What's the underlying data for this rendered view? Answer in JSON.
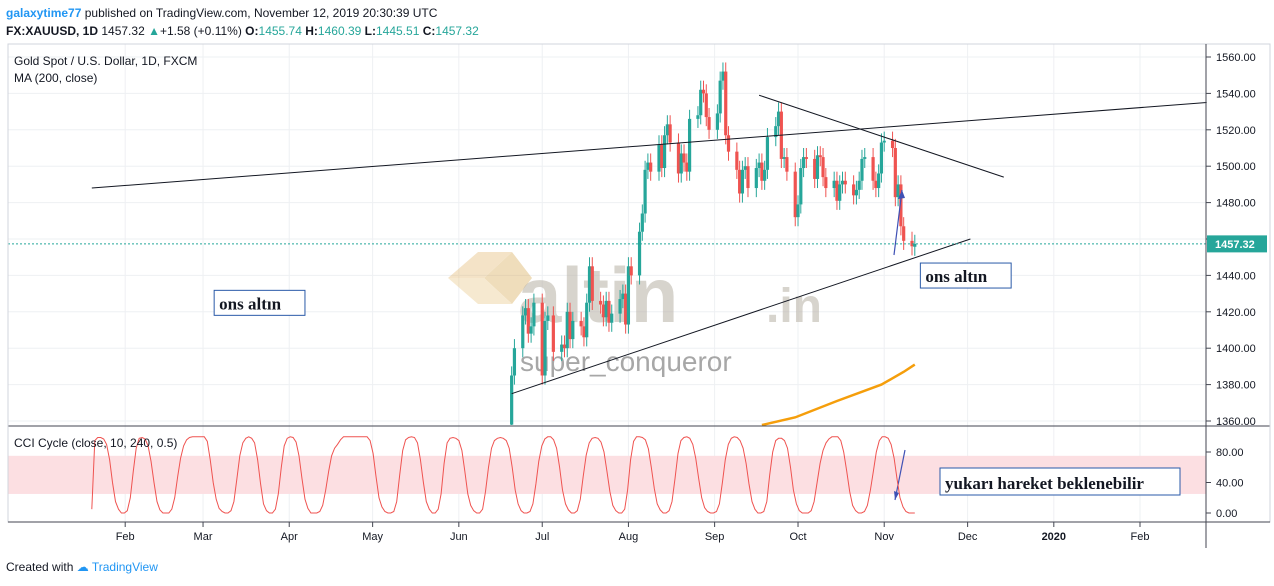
{
  "header": {
    "author": "galaxytime77",
    "published": "published on TradingView.com, November 12, 2019 20:30:39 UTC",
    "symbol": "FX:XAUUSD, 1D",
    "last": "1457.32",
    "change": "+1.58 (+0.11%)",
    "open_label": "O:",
    "open": "1455.74",
    "high_label": "H:",
    "high": "1460.39",
    "low_label": "L:",
    "low": "1445.51",
    "close_label": "C:",
    "close": "1457.32"
  },
  "footer": {
    "created_with": "Created with",
    "brand": "TradingView"
  },
  "colors": {
    "up": "#26a69a",
    "down": "#ef5350",
    "ma": "#f59e0b",
    "cci": "#ef5350",
    "band": "#fcdfe2",
    "trend": "#131722",
    "arrow": "#3f51b5"
  },
  "watermark": {
    "logo": "altin",
    "logo_suffix": ".in",
    "user": "super_conqueror"
  },
  "chart_data": [
    {
      "type": "candlestick",
      "title": "Gold Spot / U.S. Dollar, 1D, FXCM",
      "indicator": "MA (200, close)",
      "x_ticks": [
        "Feb",
        "Mar",
        "Apr",
        "May",
        "Jun",
        "Jul",
        "Aug",
        "Sep",
        "Oct",
        "Nov",
        "Dec",
        "2020",
        "Feb"
      ],
      "y_ticks": [
        1360,
        1380,
        1400,
        1420,
        1440,
        1460,
        1480,
        1500,
        1520,
        1540,
        1560
      ],
      "ylim": [
        1355,
        1566
      ],
      "last_price": "1457.32",
      "candles": [
        {
          "x": "2019-06-20",
          "o": 1358,
          "c": 1385
        },
        {
          "x": "2019-06-21",
          "o": 1385,
          "c": 1400
        },
        {
          "x": "2019-06-24",
          "o": 1400,
          "c": 1418
        },
        {
          "x": "2019-06-25",
          "o": 1418,
          "c": 1422
        },
        {
          "x": "2019-06-26",
          "o": 1422,
          "c": 1408
        },
        {
          "x": "2019-06-27",
          "o": 1408,
          "c": 1412
        },
        {
          "x": "2019-06-28",
          "o": 1412,
          "c": 1425
        },
        {
          "x": "2019-07-01",
          "o": 1425,
          "c": 1385
        },
        {
          "x": "2019-07-02",
          "o": 1385,
          "c": 1415
        },
        {
          "x": "2019-07-03",
          "o": 1415,
          "c": 1418
        },
        {
          "x": "2019-07-05",
          "o": 1418,
          "c": 1398
        },
        {
          "x": "2019-07-08",
          "o": 1398,
          "c": 1402
        },
        {
          "x": "2019-07-09",
          "o": 1402,
          "c": 1400
        },
        {
          "x": "2019-07-10",
          "o": 1400,
          "c": 1420
        },
        {
          "x": "2019-07-11",
          "o": 1420,
          "c": 1405
        },
        {
          "x": "2019-07-12",
          "o": 1405,
          "c": 1415
        },
        {
          "x": "2019-07-15",
          "o": 1415,
          "c": 1412
        },
        {
          "x": "2019-07-16",
          "o": 1412,
          "c": 1406
        },
        {
          "x": "2019-07-17",
          "o": 1406,
          "c": 1425
        },
        {
          "x": "2019-07-18",
          "o": 1425,
          "c": 1445
        },
        {
          "x": "2019-07-19",
          "o": 1445,
          "c": 1426
        },
        {
          "x": "2019-07-22",
          "o": 1426,
          "c": 1424
        },
        {
          "x": "2019-07-23",
          "o": 1424,
          "c": 1417
        },
        {
          "x": "2019-07-24",
          "o": 1417,
          "c": 1426
        },
        {
          "x": "2019-07-25",
          "o": 1426,
          "c": 1414
        },
        {
          "x": "2019-07-26",
          "o": 1414,
          "c": 1419
        },
        {
          "x": "2019-07-29",
          "o": 1419,
          "c": 1427
        },
        {
          "x": "2019-07-30",
          "o": 1427,
          "c": 1430
        },
        {
          "x": "2019-07-31",
          "o": 1430,
          "c": 1413
        },
        {
          "x": "2019-08-01",
          "o": 1413,
          "c": 1445
        },
        {
          "x": "2019-08-02",
          "o": 1445,
          "c": 1440
        },
        {
          "x": "2019-08-05",
          "o": 1440,
          "c": 1464
        },
        {
          "x": "2019-08-06",
          "o": 1464,
          "c": 1474
        },
        {
          "x": "2019-08-07",
          "o": 1474,
          "c": 1498
        },
        {
          "x": "2019-08-08",
          "o": 1498,
          "c": 1502
        },
        {
          "x": "2019-08-09",
          "o": 1502,
          "c": 1497
        },
        {
          "x": "2019-08-12",
          "o": 1497,
          "c": 1512
        },
        {
          "x": "2019-08-13",
          "o": 1512,
          "c": 1499
        },
        {
          "x": "2019-08-14",
          "o": 1499,
          "c": 1517
        },
        {
          "x": "2019-08-15",
          "o": 1517,
          "c": 1523
        },
        {
          "x": "2019-08-16",
          "o": 1523,
          "c": 1513
        },
        {
          "x": "2019-08-19",
          "o": 1513,
          "c": 1496
        },
        {
          "x": "2019-08-20",
          "o": 1496,
          "c": 1507
        },
        {
          "x": "2019-08-21",
          "o": 1507,
          "c": 1502
        },
        {
          "x": "2019-08-22",
          "o": 1502,
          "c": 1497
        },
        {
          "x": "2019-08-23",
          "o": 1497,
          "c": 1526
        },
        {
          "x": "2019-08-26",
          "o": 1526,
          "c": 1528
        },
        {
          "x": "2019-08-27",
          "o": 1528,
          "c": 1542
        },
        {
          "x": "2019-08-28",
          "o": 1542,
          "c": 1540
        },
        {
          "x": "2019-08-29",
          "o": 1540,
          "c": 1527
        },
        {
          "x": "2019-08-30",
          "o": 1527,
          "c": 1520
        },
        {
          "x": "2019-09-02",
          "o": 1520,
          "c": 1529
        },
        {
          "x": "2019-09-03",
          "o": 1529,
          "c": 1547
        },
        {
          "x": "2019-09-04",
          "o": 1547,
          "c": 1552
        },
        {
          "x": "2019-09-05",
          "o": 1552,
          "c": 1517
        },
        {
          "x": "2019-09-06",
          "o": 1517,
          "c": 1508
        },
        {
          "x": "2019-09-09",
          "o": 1508,
          "c": 1498
        },
        {
          "x": "2019-09-10",
          "o": 1498,
          "c": 1485
        },
        {
          "x": "2019-09-11",
          "o": 1485,
          "c": 1498
        },
        {
          "x": "2019-09-12",
          "o": 1498,
          "c": 1500
        },
        {
          "x": "2019-09-13",
          "o": 1500,
          "c": 1488
        },
        {
          "x": "2019-09-16",
          "o": 1488,
          "c": 1499
        },
        {
          "x": "2019-09-17",
          "o": 1499,
          "c": 1502
        },
        {
          "x": "2019-09-18",
          "o": 1502,
          "c": 1492
        },
        {
          "x": "2019-09-19",
          "o": 1492,
          "c": 1498
        },
        {
          "x": "2019-09-20",
          "o": 1498,
          "c": 1516
        },
        {
          "x": "2019-09-23",
          "o": 1516,
          "c": 1522
        },
        {
          "x": "2019-09-24",
          "o": 1522,
          "c": 1530
        },
        {
          "x": "2019-09-25",
          "o": 1530,
          "c": 1504
        },
        {
          "x": "2019-09-26",
          "o": 1504,
          "c": 1505
        },
        {
          "x": "2019-09-27",
          "o": 1505,
          "c": 1497
        },
        {
          "x": "2019-09-30",
          "o": 1497,
          "c": 1472
        },
        {
          "x": "2019-10-01",
          "o": 1472,
          "c": 1479
        },
        {
          "x": "2019-10-02",
          "o": 1479,
          "c": 1499
        },
        {
          "x": "2019-10-03",
          "o": 1499,
          "c": 1505
        },
        {
          "x": "2019-10-04",
          "o": 1505,
          "c": 1504
        },
        {
          "x": "2019-10-07",
          "o": 1504,
          "c": 1493
        },
        {
          "x": "2019-10-08",
          "o": 1493,
          "c": 1506
        },
        {
          "x": "2019-10-09",
          "o": 1506,
          "c": 1505
        },
        {
          "x": "2019-10-10",
          "o": 1505,
          "c": 1494
        },
        {
          "x": "2019-10-11",
          "o": 1494,
          "c": 1488
        },
        {
          "x": "2019-10-14",
          "o": 1488,
          "c": 1492
        },
        {
          "x": "2019-10-15",
          "o": 1492,
          "c": 1481
        },
        {
          "x": "2019-10-16",
          "o": 1481,
          "c": 1490
        },
        {
          "x": "2019-10-17",
          "o": 1490,
          "c": 1492
        },
        {
          "x": "2019-10-18",
          "o": 1492,
          "c": 1490
        },
        {
          "x": "2019-10-21",
          "o": 1490,
          "c": 1484
        },
        {
          "x": "2019-10-22",
          "o": 1484,
          "c": 1487
        },
        {
          "x": "2019-10-23",
          "o": 1487,
          "c": 1492
        },
        {
          "x": "2019-10-24",
          "o": 1492,
          "c": 1504
        },
        {
          "x": "2019-10-25",
          "o": 1504,
          "c": 1505
        },
        {
          "x": "2019-10-28",
          "o": 1505,
          "c": 1492
        },
        {
          "x": "2019-10-29",
          "o": 1492,
          "c": 1488
        },
        {
          "x": "2019-10-30",
          "o": 1488,
          "c": 1496
        },
        {
          "x": "2019-10-31",
          "o": 1496,
          "c": 1513
        },
        {
          "x": "2019-11-01",
          "o": 1513,
          "c": 1514
        },
        {
          "x": "2019-11-04",
          "o": 1514,
          "c": 1510
        },
        {
          "x": "2019-11-05",
          "o": 1510,
          "c": 1483
        },
        {
          "x": "2019-11-06",
          "o": 1483,
          "c": 1490
        },
        {
          "x": "2019-11-07",
          "o": 1490,
          "c": 1467
        },
        {
          "x": "2019-11-08",
          "o": 1467,
          "c": 1459
        },
        {
          "x": "2019-11-11",
          "o": 1459,
          "c": 1456
        },
        {
          "x": "2019-11-12",
          "o": 1455.74,
          "c": 1457.32
        }
      ],
      "ma200": [
        {
          "x": "2019-09-18",
          "y": 1355
        },
        {
          "x": "2019-09-30",
          "y": 1362
        },
        {
          "x": "2019-10-15",
          "y": 1371
        },
        {
          "x": "2019-10-31",
          "y": 1380
        },
        {
          "x": "2019-11-08",
          "y": 1387
        },
        {
          "x": "2019-11-12",
          "y": 1391
        }
      ],
      "trendlines": [
        {
          "from": {
            "x": "2019-01-20",
            "y": 1488
          },
          "to": {
            "x": "2020-02-25",
            "y": 1535
          }
        },
        {
          "from": {
            "x": "2019-09-17",
            "y": 1539
          },
          "to": {
            "x": "2019-12-14",
            "y": 1494
          }
        },
        {
          "from": {
            "x": "2019-06-20",
            "y": 1375
          },
          "to": {
            "x": "2019-12-02",
            "y": 1460
          }
        }
      ],
      "annotations": [
        {
          "text": "ons altın",
          "x": "2019-03-05",
          "y": 1423
        },
        {
          "text": "ons altın",
          "x": "2019-11-14",
          "y": 1438
        }
      ]
    },
    {
      "type": "line",
      "title": "CCI Cycle (close, 10, 240, 0.5)",
      "y_ticks": [
        0,
        40,
        80
      ],
      "ylim": [
        -6,
        112
      ],
      "band": [
        25,
        75
      ],
      "values": [
        5,
        95,
        99,
        99,
        97,
        90,
        70,
        40,
        15,
        5,
        0,
        0,
        3,
        20,
        55,
        85,
        98,
        99,
        97,
        88,
        68,
        40,
        15,
        4,
        0,
        0,
        0,
        5,
        20,
        48,
        72,
        88,
        96,
        99,
        100,
        100,
        100,
        100,
        100,
        94,
        70,
        40,
        18,
        6,
        2,
        0,
        0,
        3,
        15,
        45,
        75,
        92,
        98,
        100,
        98,
        92,
        70,
        38,
        12,
        3,
        0,
        0,
        5,
        25,
        60,
        88,
        98,
        100,
        99,
        93,
        75,
        45,
        18,
        6,
        0,
        0,
        0,
        2,
        10,
        30,
        55,
        75,
        85,
        90,
        96,
        100,
        100,
        100,
        100,
        100,
        100,
        100,
        100,
        100,
        95,
        78,
        48,
        20,
        8,
        2,
        0,
        0,
        2,
        15,
        50,
        82,
        96,
        99,
        100,
        99,
        92,
        70,
        40,
        15,
        5,
        0,
        0,
        5,
        25,
        65,
        92,
        98,
        99,
        98,
        95,
        82,
        55,
        25,
        10,
        3,
        0,
        0,
        5,
        28,
        60,
        85,
        95,
        98,
        99,
        98,
        95,
        85,
        60,
        30,
        12,
        3,
        0,
        0,
        2,
        12,
        38,
        68,
        88,
        97,
        100,
        100,
        96,
        85,
        60,
        30,
        12,
        4,
        0,
        0,
        3,
        18,
        48,
        76,
        92,
        98,
        99,
        98,
        93,
        80,
        55,
        28,
        10,
        3,
        0,
        0,
        5,
        30,
        70,
        94,
        100,
        100,
        99,
        96,
        84,
        60,
        32,
        12,
        4,
        0,
        0,
        3,
        15,
        45,
        78,
        95,
        99,
        100,
        98,
        90,
        72,
        45,
        20,
        7,
        2,
        0,
        0,
        2,
        12,
        40,
        70,
        90,
        98,
        100,
        99,
        95,
        85,
        65,
        38,
        15,
        5,
        0,
        0,
        2,
        15,
        50,
        80,
        95,
        98,
        98,
        95,
        85,
        60,
        30,
        12,
        3,
        0,
        0,
        0,
        3,
        15,
        40,
        65,
        82,
        92,
        97,
        100,
        100,
        100,
        95,
        80,
        55,
        28,
        10,
        3,
        0,
        0,
        2,
        10,
        30,
        55,
        80,
        95,
        100,
        100,
        98,
        90,
        72,
        45,
        20,
        8,
        2,
        0,
        0,
        0
      ],
      "x_start": "2019-01-20",
      "x_end": "2019-11-12"
    }
  ]
}
